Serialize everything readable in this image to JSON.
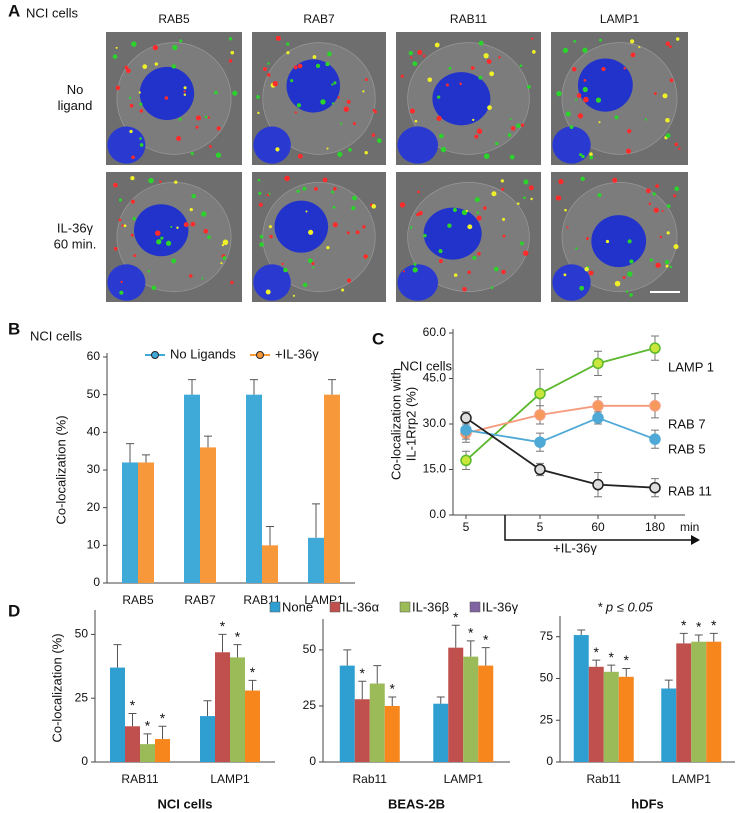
{
  "panel_a": {
    "label": "A",
    "title": "NCI cells",
    "columns": [
      "RAB5",
      "RAB7",
      "RAB11",
      "LAMP1"
    ],
    "rows": [
      [
        "No",
        "ligand"
      ],
      [
        "IL-36γ",
        "60 min."
      ]
    ]
  },
  "panel_labels": {
    "b": "B",
    "c": "C",
    "d": "D"
  },
  "chart_data": [
    {
      "type": "bar",
      "title": "NCI cells",
      "ylabel": "Co-localization (%)",
      "categories": [
        "RAB5",
        "RAB7",
        "RAB11",
        "LAMP1"
      ],
      "series": [
        {
          "name": "No Ligands",
          "color": "#3fa9d8",
          "values": [
            32,
            50,
            50,
            12
          ],
          "errors": [
            5,
            4,
            4,
            9
          ]
        },
        {
          "name": "+IL-36γ",
          "color": "#f7993a",
          "values": [
            32,
            36,
            10,
            50
          ],
          "errors": [
            2,
            3,
            5,
            4
          ]
        }
      ],
      "ylim": [
        0,
        60
      ],
      "yticks": [
        0,
        10,
        20,
        30,
        40,
        50,
        60
      ],
      "legend": "top"
    },
    {
      "type": "line",
      "title": "NCI cells",
      "ylabel": [
        "Co-localization with",
        "IL-1Rrp2 (%)"
      ],
      "categories": [
        "5",
        "5",
        "60",
        "180"
      ],
      "xunit": "min",
      "annotation": "+IL-36γ",
      "series": [
        {
          "name": "LAMP 1",
          "color": "#5cb82e",
          "fill": "#c8e63c",
          "values": [
            18,
            40,
            50,
            55
          ],
          "errors": [
            3,
            8,
            4,
            4
          ]
        },
        {
          "name": "RAB 7",
          "color": "#f59a7a",
          "fill": "#f7995a",
          "values": [
            27,
            33,
            36,
            36
          ],
          "errors": [
            3,
            3,
            3,
            4
          ]
        },
        {
          "name": "RAB 5",
          "color": "#4ea9d6",
          "fill": "#4ea9d6",
          "values": [
            28,
            24,
            32,
            25
          ],
          "errors": [
            3,
            3,
            2,
            3
          ]
        },
        {
          "name": "RAB 11",
          "color": "#222222",
          "fill": "#dddddd",
          "values": [
            32,
            15,
            10,
            9
          ],
          "errors": [
            2,
            2,
            4,
            3
          ]
        }
      ],
      "ylim": [
        0,
        60
      ],
      "yticks": [
        {
          "value": 0,
          "label": "0.0"
        },
        {
          "value": 15,
          "label": "15.0"
        },
        {
          "value": 30,
          "label": "30.0"
        },
        {
          "value": 45,
          "label": "45.0"
        },
        {
          "value": 60,
          "label": "60.0"
        }
      ]
    },
    {
      "type": "bar",
      "xlabel": "NCI cells",
      "ylabel": "Co-localization (%)",
      "categories": [
        "RAB11",
        "LAMP1"
      ],
      "series": [
        {
          "color": "#2f9fd1",
          "values": [
            37,
            18
          ],
          "errors": [
            9,
            6
          ],
          "markers": [
            null,
            null
          ]
        },
        {
          "color": "#c0504d",
          "values": [
            14,
            43
          ],
          "errors": [
            5,
            7
          ],
          "markers": [
            "*",
            "*"
          ]
        },
        {
          "color": "#9bbb59",
          "values": [
            7,
            41
          ],
          "errors": [
            4,
            5
          ],
          "markers": [
            "*",
            "*"
          ]
        },
        {
          "color": "#f7861c",
          "values": [
            9,
            28
          ],
          "errors": [
            5,
            4
          ],
          "markers": [
            "*",
            "*"
          ]
        }
      ],
      "ylim": [
        0,
        58
      ],
      "yticks": [
        0,
        25,
        50
      ]
    },
    {
      "type": "bar",
      "xlabel": "BEAS-2B",
      "categories": [
        "Rab11",
        "LAMP1"
      ],
      "series": [
        {
          "name": "None",
          "color": "#2f9fd1",
          "legend_color": "#2f9fd1",
          "values": [
            43,
            26
          ],
          "errors": [
            7,
            3
          ],
          "markers": [
            null,
            null
          ]
        },
        {
          "name": "IL-36α",
          "color": "#c0504d",
          "legend_color": "#c0504d",
          "values": [
            28,
            51
          ],
          "errors": [
            8,
            10
          ],
          "markers": [
            "*",
            "*"
          ]
        },
        {
          "name": "IL-36β",
          "color": "#9bbb59",
          "legend_color": "#9bbb59",
          "values": [
            35,
            47
          ],
          "errors": [
            8,
            7
          ],
          "markers": [
            null,
            "*"
          ]
        },
        {
          "name": "IL-36γ",
          "color": "#f7861c",
          "legend_color": "#8064a2",
          "values": [
            25,
            43
          ],
          "errors": [
            4,
            8
          ],
          "markers": [
            "*",
            "*"
          ]
        }
      ],
      "ylim": [
        0,
        62
      ],
      "yticks": [
        0,
        25,
        50
      ],
      "legend": "top"
    },
    {
      "type": "bar",
      "xlabel": "hDFs",
      "annotation": "* p ≤ 0.05",
      "categories": [
        "Rab11",
        "LAMP1"
      ],
      "series": [
        {
          "color": "#2f9fd1",
          "values": [
            76,
            44
          ],
          "errors": [
            3,
            5
          ],
          "markers": [
            null,
            null
          ]
        },
        {
          "color": "#c0504d",
          "values": [
            57,
            71
          ],
          "errors": [
            4,
            6
          ],
          "markers": [
            "*",
            "*"
          ]
        },
        {
          "color": "#9bbb59",
          "values": [
            54,
            72
          ],
          "errors": [
            4,
            4
          ],
          "markers": [
            "*",
            "*"
          ]
        },
        {
          "color": "#f7861c",
          "values": [
            51,
            72
          ],
          "errors": [
            5,
            5
          ],
          "markers": [
            "*",
            "*"
          ]
        }
      ],
      "ylim": [
        0,
        85
      ],
      "yticks": [
        0,
        25,
        50,
        75
      ]
    }
  ]
}
